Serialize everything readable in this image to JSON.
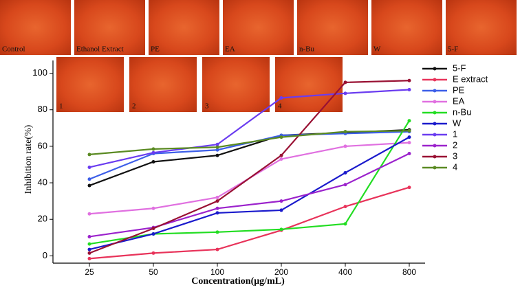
{
  "images": {
    "top": [
      "Control",
      "Ethanol Extract",
      "PE",
      "EA",
      "n-Bu",
      "W",
      "5-F"
    ],
    "inset": [
      "1",
      "2",
      "3",
      "4"
    ]
  },
  "chart_data": {
    "type": "line",
    "x_label": "Concentration(μg/mL)",
    "y_label": "Inhibition rate(%)",
    "categories": [
      "25",
      "50",
      "100",
      "200",
      "400",
      "800"
    ],
    "ylim": [
      -4,
      107
    ],
    "yticks": [
      0,
      20,
      40,
      60,
      80,
      100
    ],
    "series": [
      {
        "name": "5-F",
        "color": "#111111",
        "values": [
          38.5,
          51.5,
          55,
          66,
          67.5,
          69
        ]
      },
      {
        "name": "E extract",
        "color": "#e8335a",
        "values": [
          -1.5,
          1.5,
          3.5,
          14,
          27,
          37.5
        ]
      },
      {
        "name": "PE",
        "color": "#3c5ee8",
        "values": [
          42,
          56,
          58,
          66,
          67,
          68
        ]
      },
      {
        "name": "EA",
        "color": "#e070e0",
        "values": [
          23,
          26,
          32,
          53,
          60,
          62
        ]
      },
      {
        "name": "n-Bu",
        "color": "#22dd22",
        "values": [
          6.5,
          12,
          13,
          14.5,
          17.5,
          74
        ]
      },
      {
        "name": "W",
        "color": "#1a1acc",
        "values": [
          3.5,
          12,
          23.5,
          25,
          45.5,
          65
        ]
      },
      {
        "name": "1",
        "color": "#6a3cf0",
        "values": [
          48.5,
          56.5,
          61,
          86.5,
          89,
          91
        ]
      },
      {
        "name": "2",
        "color": "#9b22cc",
        "values": [
          10.5,
          15.5,
          26,
          30,
          39,
          56
        ]
      },
      {
        "name": "3",
        "color": "#991133",
        "values": [
          1.5,
          15,
          30,
          55,
          95,
          96
        ]
      },
      {
        "name": "4",
        "color": "#5a8a22",
        "values": [
          55.5,
          58.5,
          59.5,
          65,
          68,
          68.5
        ]
      }
    ]
  }
}
